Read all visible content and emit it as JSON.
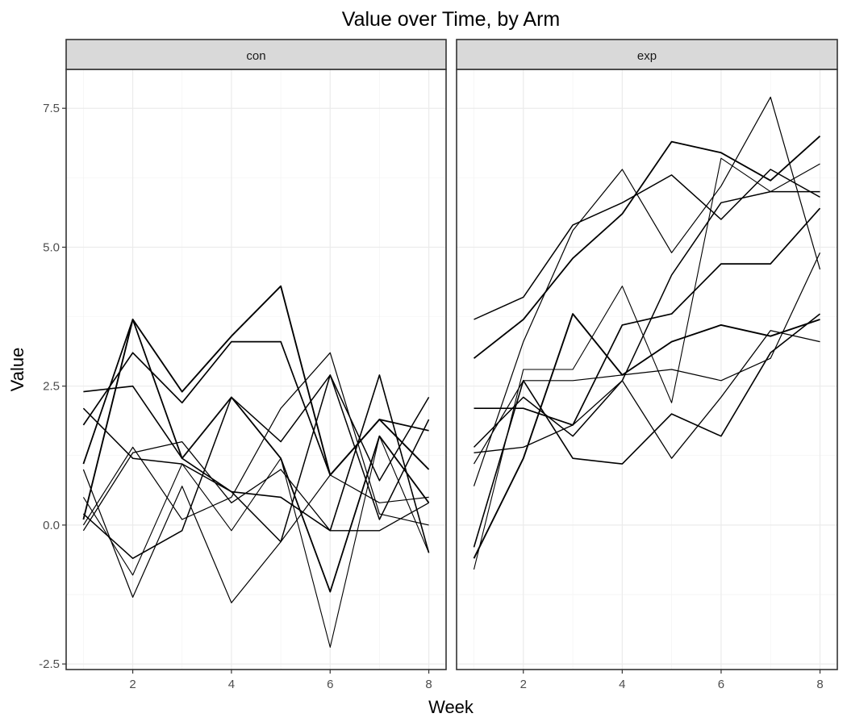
{
  "chart_data": {
    "type": "line",
    "title": "Value over Time, by Arm",
    "xlabel": "Week",
    "ylabel": "Value",
    "xlim": [
      0.65,
      8.35
    ],
    "ylim": [
      -2.6,
      8.2
    ],
    "x_ticks": [
      2,
      4,
      6,
      8
    ],
    "x_tick_labels": [
      "2",
      "4",
      "6",
      "8"
    ],
    "y_ticks": [
      -2.5,
      0,
      2.5,
      5,
      7.5
    ],
    "y_tick_labels": [
      "-2.5",
      "0.0",
      "2.5",
      "5.0",
      "7.5"
    ],
    "grid": true,
    "legend": "none",
    "x": [
      1,
      2,
      3,
      4,
      5,
      6,
      7,
      8
    ],
    "panels": [
      {
        "name": "con",
        "series": [
          {
            "values": [
              0.2,
              -0.6,
              -0.1,
              2.3,
              1.5,
              2.7,
              0.8,
              2.3
            ]
          },
          {
            "values": [
              1.1,
              3.7,
              1.2,
              2.3,
              1.2,
              -1.2,
              1.6,
              0.4
            ]
          },
          {
            "values": [
              0.0,
              1.4,
              0.1,
              0.5,
              2.1,
              3.1,
              0.2,
              0.0
            ]
          },
          {
            "values": [
              1.8,
              3.1,
              2.2,
              3.3,
              3.3,
              0.9,
              1.9,
              1.7
            ]
          },
          {
            "values": [
              -0.1,
              1.3,
              1.5,
              0.4,
              1.0,
              -0.1,
              -0.1,
              0.4
            ]
          },
          {
            "values": [
              2.4,
              2.5,
              1.2,
              0.6,
              0.5,
              -0.1,
              2.7,
              -0.5
            ]
          },
          {
            "values": [
              0.5,
              -0.9,
              1.1,
              -0.1,
              1.2,
              -2.2,
              1.6,
              -0.5
            ]
          },
          {
            "values": [
              2.1,
              1.2,
              1.1,
              0.6,
              -0.3,
              2.7,
              0.1,
              1.9
            ]
          },
          {
            "values": [
              1.0,
              -1.3,
              0.7,
              -1.4,
              -0.3,
              0.9,
              0.4,
              0.5
            ]
          },
          {
            "values": [
              0.1,
              3.7,
              2.4,
              3.4,
              4.3,
              0.9,
              1.9,
              1.0
            ]
          }
        ]
      },
      {
        "name": "exp",
        "series": [
          {
            "values": [
              3.7,
              4.1,
              5.4,
              5.8,
              6.3,
              5.5,
              6.4,
              5.9
            ]
          },
          {
            "values": [
              3.0,
              3.7,
              4.8,
              5.6,
              6.9,
              6.7,
              6.2,
              7.0
            ]
          },
          {
            "values": [
              0.7,
              3.3,
              5.3,
              6.4,
              4.9,
              6.1,
              7.7,
              4.6
            ]
          },
          {
            "values": [
              2.1,
              2.1,
              1.8,
              3.6,
              3.8,
              4.7,
              4.7,
              5.7
            ]
          },
          {
            "values": [
              1.3,
              1.4,
              1.8,
              2.6,
              1.2,
              2.3,
              3.5,
              3.3
            ]
          },
          {
            "values": [
              -0.4,
              2.6,
              1.2,
              1.1,
              2.0,
              1.6,
              3.1,
              3.8
            ]
          },
          {
            "values": [
              -0.8,
              2.8,
              2.8,
              4.3,
              2.2,
              6.6,
              6.0,
              6.5
            ]
          },
          {
            "values": [
              1.4,
              2.3,
              1.6,
              2.6,
              4.5,
              5.8,
              6.0,
              6.0
            ]
          },
          {
            "values": [
              1.1,
              2.6,
              2.6,
              2.7,
              2.8,
              2.6,
              3.0,
              4.9
            ]
          },
          {
            "values": [
              -0.6,
              1.2,
              3.8,
              2.7,
              3.3,
              3.6,
              3.4,
              3.7
            ]
          }
        ]
      }
    ]
  }
}
